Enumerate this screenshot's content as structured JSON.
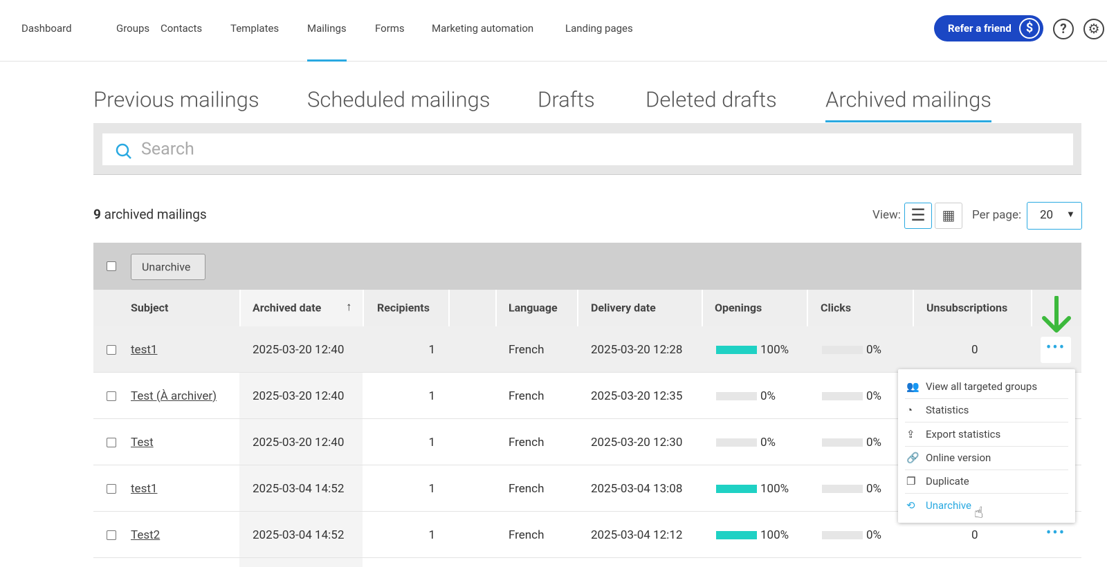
{
  "nav": {
    "items": [
      "Dashboard",
      "Groups",
      "Contacts",
      "Templates",
      "Mailings",
      "Forms",
      "Marketing automation",
      "Landing pages"
    ],
    "active": 4,
    "refer": "Refer a friend"
  },
  "tabs": {
    "items": [
      "Previous mailings",
      "Scheduled mailings",
      "Drafts",
      "Deleted drafts",
      "Archived mailings"
    ],
    "active": 4
  },
  "search": {
    "placeholder": "Search"
  },
  "summary": {
    "count": 9,
    "text": "archived mailings"
  },
  "view_label": "View:",
  "per_page_label": "Per page:",
  "per_page": 20,
  "bulk_button": "Unarchive",
  "table": {
    "columns": {
      "subject": "Subject",
      "archived": "Archived date",
      "recipients": "Recipients",
      "language": "Language",
      "delivery": "Delivery date",
      "openings": "Openings",
      "clicks": "Clicks",
      "unsubscriptions": "Unsubscriptions"
    },
    "rows": [
      {
        "subject": "test1",
        "archived": "2025-03-20 12:40",
        "recipients": 1,
        "language": "French",
        "delivery": "2025-03-20 12:28",
        "openings": {
          "value": 100,
          "label": "100%"
        },
        "clicks": {
          "value": 0,
          "label": "0%"
        },
        "unsubscriptions": 0
      },
      {
        "subject": "Test (À archiver)",
        "archived": "2025-03-20 12:40",
        "recipients": 1,
        "language": "French",
        "delivery": "2025-03-20 12:35",
        "openings": {
          "value": 0,
          "label": "0%"
        },
        "clicks": {
          "value": 0,
          "label": "0%"
        }
      },
      {
        "subject": "Test",
        "archived": "2025-03-20 12:40",
        "recipients": 1,
        "language": "French",
        "delivery": "2025-03-20 12:30",
        "openings": {
          "value": 0,
          "label": "0%"
        },
        "clicks": {
          "value": 0,
          "label": "0%"
        }
      },
      {
        "subject": "test1",
        "archived": "2025-03-04 14:52",
        "recipients": 1,
        "language": "French",
        "delivery": "2025-03-04 13:08",
        "openings": {
          "value": 100,
          "label": "100%"
        },
        "clicks": {
          "value": 0,
          "label": "0%"
        }
      },
      {
        "subject": "Test2",
        "archived": "2025-03-04 14:52",
        "recipients": 1,
        "language": "French",
        "delivery": "2025-03-04 12:12",
        "openings": {
          "value": 100,
          "label": "100%"
        },
        "clicks": {
          "value": 0,
          "label": "0%"
        },
        "unsubscriptions": 0
      }
    ]
  },
  "menu": {
    "items": [
      "View all targeted groups",
      "Statistics",
      "Export statistics",
      "Online version",
      "Duplicate",
      "Unarchive"
    ],
    "active": 5
  }
}
